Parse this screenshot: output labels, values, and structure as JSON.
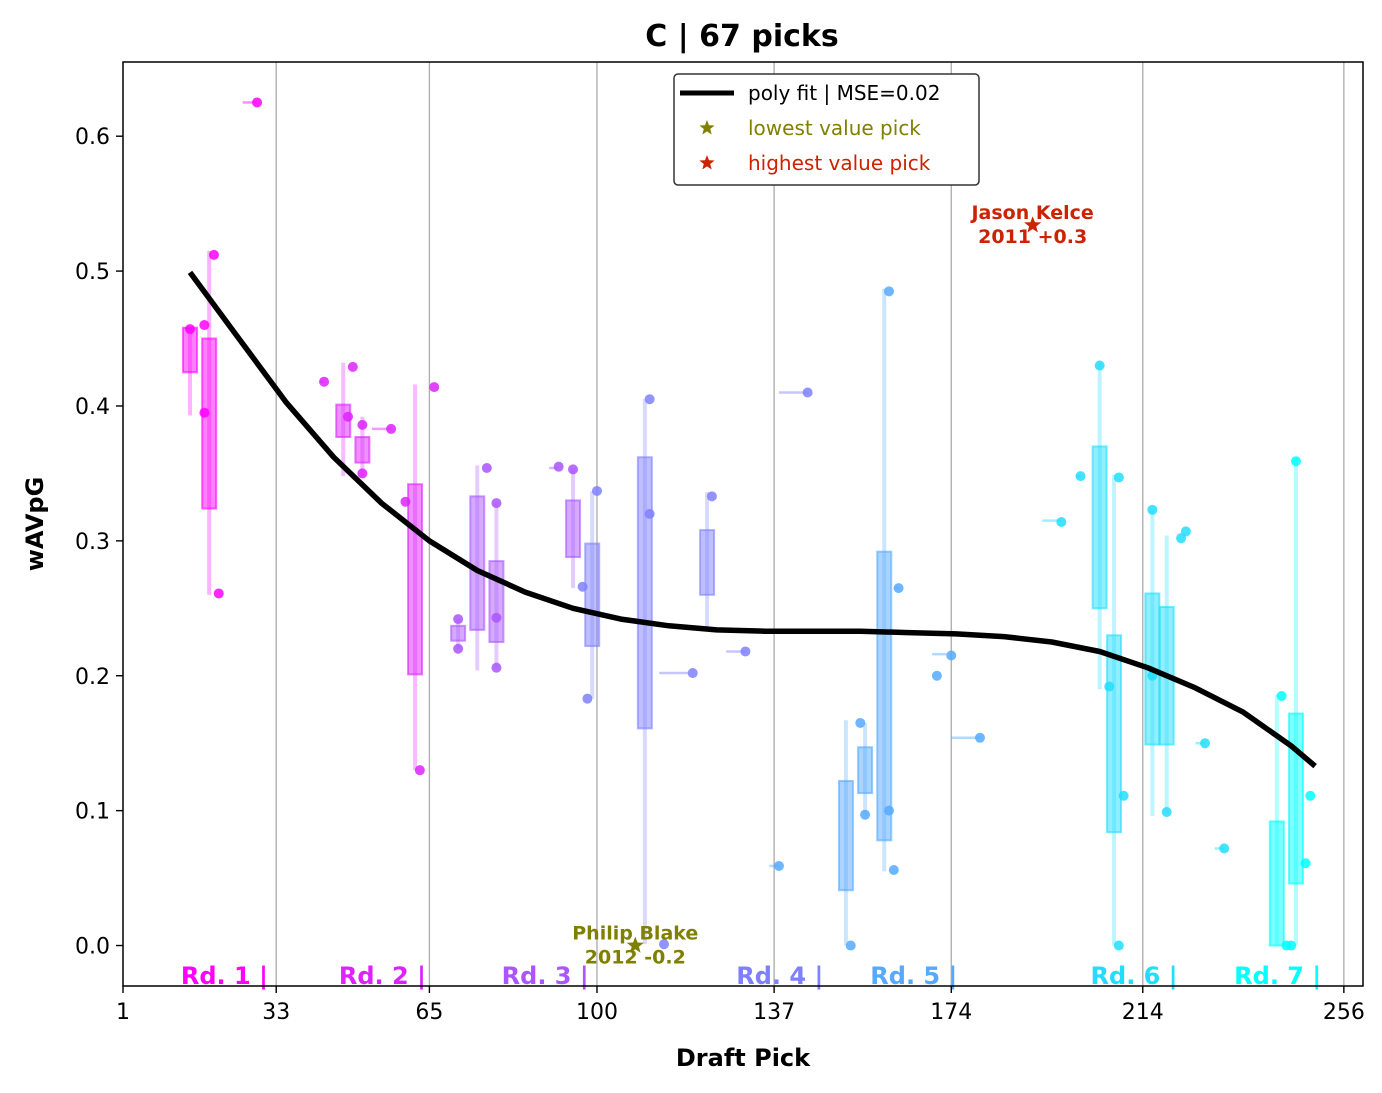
{
  "chart_data": {
    "type": "scatter",
    "title": "C | 67 picks",
    "xlabel": "Draft Pick",
    "ylabel": "wAVpG",
    "xlim": [
      1,
      260
    ],
    "ylim": [
      -0.03,
      0.655
    ],
    "x_ticks": [
      1,
      33,
      65,
      100,
      137,
      174,
      214,
      256
    ],
    "x_tick_labels": [
      "1",
      "33",
      "65",
      "100",
      "137",
      "174",
      "214",
      "256"
    ],
    "y_ticks": [
      0.0,
      0.1,
      0.2,
      0.3,
      0.4,
      0.5,
      0.6
    ],
    "y_tick_labels": [
      "0.0",
      "0.1",
      "0.2",
      "0.3",
      "0.4",
      "0.5",
      "0.6"
    ],
    "grid": "vertical at round boundaries",
    "round_lines": [
      33,
      65,
      100,
      137,
      174,
      214,
      256
    ],
    "rounds": [
      {
        "label": "Rd. 1 |",
        "end": 30,
        "color": "#ff00ff"
      },
      {
        "label": "Rd. 2 |",
        "end": 63,
        "color": "#dd22ff"
      },
      {
        "label": "Rd. 3 |",
        "end": 97,
        "color": "#aa55ff"
      },
      {
        "label": "Rd. 4 |",
        "end": 146,
        "color": "#7f80ff"
      },
      {
        "label": "Rd. 5 |",
        "end": 174,
        "color": "#55aaff"
      },
      {
        "label": "Rd. 6 |",
        "end": 220,
        "color": "#22ddff"
      },
      {
        "label": "Rd. 7 |",
        "end": 250,
        "color": "#00ffff"
      }
    ],
    "fit": {
      "name": "poly fit | MSE=0.02",
      "color": "#000000",
      "x": [
        15,
        25,
        35,
        45,
        55,
        65,
        75,
        85,
        95,
        105,
        115,
        125,
        135,
        145,
        155,
        165,
        175,
        185,
        195,
        205,
        215,
        225,
        235,
        245,
        250
      ],
      "y": [
        0.499,
        0.451,
        0.403,
        0.362,
        0.328,
        0.3,
        0.278,
        0.262,
        0.25,
        0.242,
        0.237,
        0.234,
        0.233,
        0.233,
        0.233,
        0.232,
        0.231,
        0.229,
        0.225,
        0.218,
        0.206,
        0.191,
        0.173,
        0.148,
        0.133
      ]
    },
    "points": [
      {
        "x": 15,
        "y": 0.457,
        "c": "#ff00ff"
      },
      {
        "x": 18,
        "y": 0.46,
        "c": "#ff00ff"
      },
      {
        "x": 18,
        "y": 0.395,
        "c": "#ff00ff"
      },
      {
        "x": 20,
        "y": 0.512,
        "c": "#ff00ff"
      },
      {
        "x": 21,
        "y": 0.261,
        "c": "#ff00ff"
      },
      {
        "x": 29,
        "y": 0.625,
        "c": "#ff00ff"
      },
      {
        "x": 43,
        "y": 0.418,
        "c": "#dd22ff"
      },
      {
        "x": 48,
        "y": 0.392,
        "c": "#dd22ff"
      },
      {
        "x": 49,
        "y": 0.429,
        "c": "#dd22ff"
      },
      {
        "x": 51,
        "y": 0.386,
        "c": "#dd22ff"
      },
      {
        "x": 51,
        "y": 0.35,
        "c": "#dd22ff"
      },
      {
        "x": 57,
        "y": 0.383,
        "c": "#dd22ff"
      },
      {
        "x": 60,
        "y": 0.329,
        "c": "#dd22ff"
      },
      {
        "x": 63,
        "y": 0.13,
        "c": "#dd22ff"
      },
      {
        "x": 66,
        "y": 0.414,
        "c": "#dd22ff"
      },
      {
        "x": 71,
        "y": 0.242,
        "c": "#aa55ff"
      },
      {
        "x": 71,
        "y": 0.22,
        "c": "#aa55ff"
      },
      {
        "x": 77,
        "y": 0.354,
        "c": "#aa55ff"
      },
      {
        "x": 79,
        "y": 0.328,
        "c": "#aa55ff"
      },
      {
        "x": 79,
        "y": 0.243,
        "c": "#aa55ff"
      },
      {
        "x": 79,
        "y": 0.206,
        "c": "#aa55ff"
      },
      {
        "x": 92,
        "y": 0.355,
        "c": "#aa55ff"
      },
      {
        "x": 95,
        "y": 0.353,
        "c": "#aa55ff"
      },
      {
        "x": 97,
        "y": 0.266,
        "c": "#7f80ff"
      },
      {
        "x": 98,
        "y": 0.183,
        "c": "#7f80ff"
      },
      {
        "x": 100,
        "y": 0.337,
        "c": "#7f80ff"
      },
      {
        "x": 111,
        "y": 0.405,
        "c": "#7f80ff"
      },
      {
        "x": 111,
        "y": 0.32,
        "c": "#7f80ff"
      },
      {
        "x": 114,
        "y": 0.001,
        "c": "#7f80ff"
      },
      {
        "x": 120,
        "y": 0.202,
        "c": "#7f80ff"
      },
      {
        "x": 124,
        "y": 0.333,
        "c": "#7f80ff"
      },
      {
        "x": 131,
        "y": 0.218,
        "c": "#7f80ff"
      },
      {
        "x": 144,
        "y": 0.41,
        "c": "#7f80ff"
      },
      {
        "x": 138,
        "y": 0.059,
        "c": "#55aaff"
      },
      {
        "x": 153,
        "y": 0.0,
        "c": "#55aaff"
      },
      {
        "x": 155,
        "y": 0.165,
        "c": "#55aaff"
      },
      {
        "x": 156,
        "y": 0.097,
        "c": "#55aaff"
      },
      {
        "x": 161,
        "y": 0.485,
        "c": "#55aaff"
      },
      {
        "x": 161,
        "y": 0.1,
        "c": "#55aaff"
      },
      {
        "x": 162,
        "y": 0.056,
        "c": "#55aaff"
      },
      {
        "x": 163,
        "y": 0.265,
        "c": "#55aaff"
      },
      {
        "x": 171,
        "y": 0.2,
        "c": "#55aaff"
      },
      {
        "x": 174,
        "y": 0.215,
        "c": "#55aaff"
      },
      {
        "x": 180,
        "y": 0.154,
        "c": "#55aaff"
      },
      {
        "x": 197,
        "y": 0.314,
        "c": "#22ddff"
      },
      {
        "x": 201,
        "y": 0.348,
        "c": "#22ddff"
      },
      {
        "x": 205,
        "y": 0.43,
        "c": "#22ddff"
      },
      {
        "x": 207,
        "y": 0.192,
        "c": "#22ddff"
      },
      {
        "x": 209,
        "y": 0.347,
        "c": "#22ddff"
      },
      {
        "x": 209,
        "y": 0.0,
        "c": "#22ddff"
      },
      {
        "x": 210,
        "y": 0.111,
        "c": "#22ddff"
      },
      {
        "x": 216,
        "y": 0.323,
        "c": "#22ddff"
      },
      {
        "x": 216,
        "y": 0.2,
        "c": "#22ddff"
      },
      {
        "x": 219,
        "y": 0.099,
        "c": "#22ddff"
      },
      {
        "x": 222,
        "y": 0.302,
        "c": "#22ddff"
      },
      {
        "x": 223,
        "y": 0.307,
        "c": "#22ddff"
      },
      {
        "x": 227,
        "y": 0.15,
        "c": "#22ddff"
      },
      {
        "x": 231,
        "y": 0.072,
        "c": "#22ddff"
      },
      {
        "x": 243,
        "y": 0.185,
        "c": "#00ffff"
      },
      {
        "x": 244,
        "y": 0.0,
        "c": "#00ffff"
      },
      {
        "x": 245,
        "y": 0.0,
        "c": "#00ffff"
      },
      {
        "x": 246,
        "y": 0.359,
        "c": "#00ffff"
      },
      {
        "x": 248,
        "y": 0.061,
        "c": "#00ffff"
      },
      {
        "x": 249,
        "y": 0.111,
        "c": "#00ffff"
      }
    ],
    "boxes": [
      {
        "x": 15,
        "lo": 0.425,
        "hi": 0.458,
        "wlo": 0.393,
        "whi": 0.458,
        "c": "#ff00ff"
      },
      {
        "x": 19,
        "lo": 0.324,
        "hi": 0.45,
        "wlo": 0.26,
        "whi": 0.515,
        "c": "#ff00ff"
      },
      {
        "x": 47,
        "lo": 0.377,
        "hi": 0.401,
        "wlo": 0.348,
        "whi": 0.432,
        "c": "#dd22ff"
      },
      {
        "x": 51,
        "lo": 0.358,
        "hi": 0.377,
        "wlo": 0.348,
        "whi": 0.392,
        "c": "#dd22ff"
      },
      {
        "x": 62,
        "lo": 0.201,
        "hi": 0.342,
        "wlo": 0.13,
        "whi": 0.416,
        "c": "#dd22ff"
      },
      {
        "x": 71,
        "lo": 0.226,
        "hi": 0.237,
        "wlo": 0.22,
        "whi": 0.242,
        "c": "#aa55ff"
      },
      {
        "x": 75,
        "lo": 0.234,
        "hi": 0.333,
        "wlo": 0.204,
        "whi": 0.356,
        "c": "#aa55ff"
      },
      {
        "x": 79,
        "lo": 0.225,
        "hi": 0.285,
        "wlo": 0.206,
        "whi": 0.328,
        "c": "#aa55ff"
      },
      {
        "x": 95,
        "lo": 0.288,
        "hi": 0.33,
        "wlo": 0.265,
        "whi": 0.354,
        "c": "#aa55ff"
      },
      {
        "x": 99,
        "lo": 0.222,
        "hi": 0.298,
        "wlo": 0.183,
        "whi": 0.337,
        "c": "#7f80ff"
      },
      {
        "x": 110,
        "lo": 0.161,
        "hi": 0.362,
        "wlo": 0.001,
        "whi": 0.405,
        "c": "#7f80ff"
      },
      {
        "x": 123,
        "lo": 0.26,
        "hi": 0.308,
        "wlo": 0.234,
        "whi": 0.336,
        "c": "#7f80ff"
      },
      {
        "x": 152,
        "lo": 0.041,
        "hi": 0.122,
        "wlo": 0.0,
        "whi": 0.167,
        "c": "#55aaff"
      },
      {
        "x": 156,
        "lo": 0.113,
        "hi": 0.147,
        "wlo": 0.097,
        "whi": 0.165,
        "c": "#55aaff"
      },
      {
        "x": 160,
        "lo": 0.078,
        "hi": 0.292,
        "wlo": 0.055,
        "whi": 0.487,
        "c": "#55aaff"
      },
      {
        "x": 205,
        "lo": 0.25,
        "hi": 0.37,
        "wlo": 0.19,
        "whi": 0.432,
        "c": "#22ddff"
      },
      {
        "x": 208,
        "lo": 0.084,
        "hi": 0.23,
        "wlo": 0.0,
        "whi": 0.349,
        "c": "#22ddff"
      },
      {
        "x": 216,
        "lo": 0.149,
        "hi": 0.261,
        "wlo": 0.096,
        "whi": 0.323,
        "c": "#22ddff"
      },
      {
        "x": 219,
        "lo": 0.149,
        "hi": 0.251,
        "wlo": 0.099,
        "whi": 0.304,
        "c": "#22ddff"
      },
      {
        "x": 242,
        "lo": 0.0,
        "hi": 0.092,
        "wlo": 0.0,
        "whi": 0.186,
        "c": "#00ffff"
      },
      {
        "x": 246,
        "lo": 0.046,
        "hi": 0.172,
        "wlo": 0.0,
        "whi": 0.361,
        "c": "#00ffff"
      }
    ],
    "whisker_ticks": [
      {
        "x1": 26,
        "x2": 29,
        "y": 0.625,
        "c": "#ff00ff"
      },
      {
        "x1": 42,
        "x2": 43,
        "y": 0.418,
        "c": "#dd22ff"
      },
      {
        "x1": 53,
        "x2": 57,
        "y": 0.383,
        "c": "#dd22ff"
      },
      {
        "x1": 90,
        "x2": 92,
        "y": 0.354,
        "c": "#aa55ff"
      },
      {
        "x1": 113,
        "x2": 119,
        "y": 0.202,
        "c": "#7f80ff"
      },
      {
        "x1": 127,
        "x2": 131,
        "y": 0.218,
        "c": "#7f80ff"
      },
      {
        "x1": 138,
        "x2": 144,
        "y": 0.41,
        "c": "#7f80ff"
      },
      {
        "x1": 136,
        "x2": 138,
        "y": 0.059,
        "c": "#55aaff"
      },
      {
        "x1": 162,
        "x2": 163,
        "y": 0.265,
        "c": "#55aaff"
      },
      {
        "x1": 170,
        "x2": 173,
        "y": 0.216,
        "c": "#55aaff"
      },
      {
        "x1": 174,
        "x2": 180,
        "y": 0.154,
        "c": "#55aaff"
      },
      {
        "x1": 193,
        "x2": 197,
        "y": 0.315,
        "c": "#22ddff"
      },
      {
        "x1": 200,
        "x2": 201,
        "y": 0.348,
        "c": "#22ddff"
      },
      {
        "x1": 225,
        "x2": 227,
        "y": 0.15,
        "c": "#22ddff"
      },
      {
        "x1": 229,
        "x2": 231,
        "y": 0.072,
        "c": "#22ddff"
      }
    ],
    "highest_pick": {
      "name": "Jason Kelce",
      "detail": "2011 +0.3",
      "x": 191,
      "y": 0.534,
      "color": "#cc2200"
    },
    "lowest_pick": {
      "name": "Philip Blake",
      "detail": "2012 -0.2",
      "x": 108,
      "y": 0.0,
      "color": "#808000"
    },
    "legend": {
      "position": "top-center",
      "entries": [
        {
          "label": "poly fit | MSE=0.02",
          "color": "#000000"
        },
        {
          "label": "lowest value pick",
          "color": "#808000"
        },
        {
          "label": "highest value pick",
          "color": "#cc2200"
        }
      ]
    }
  }
}
